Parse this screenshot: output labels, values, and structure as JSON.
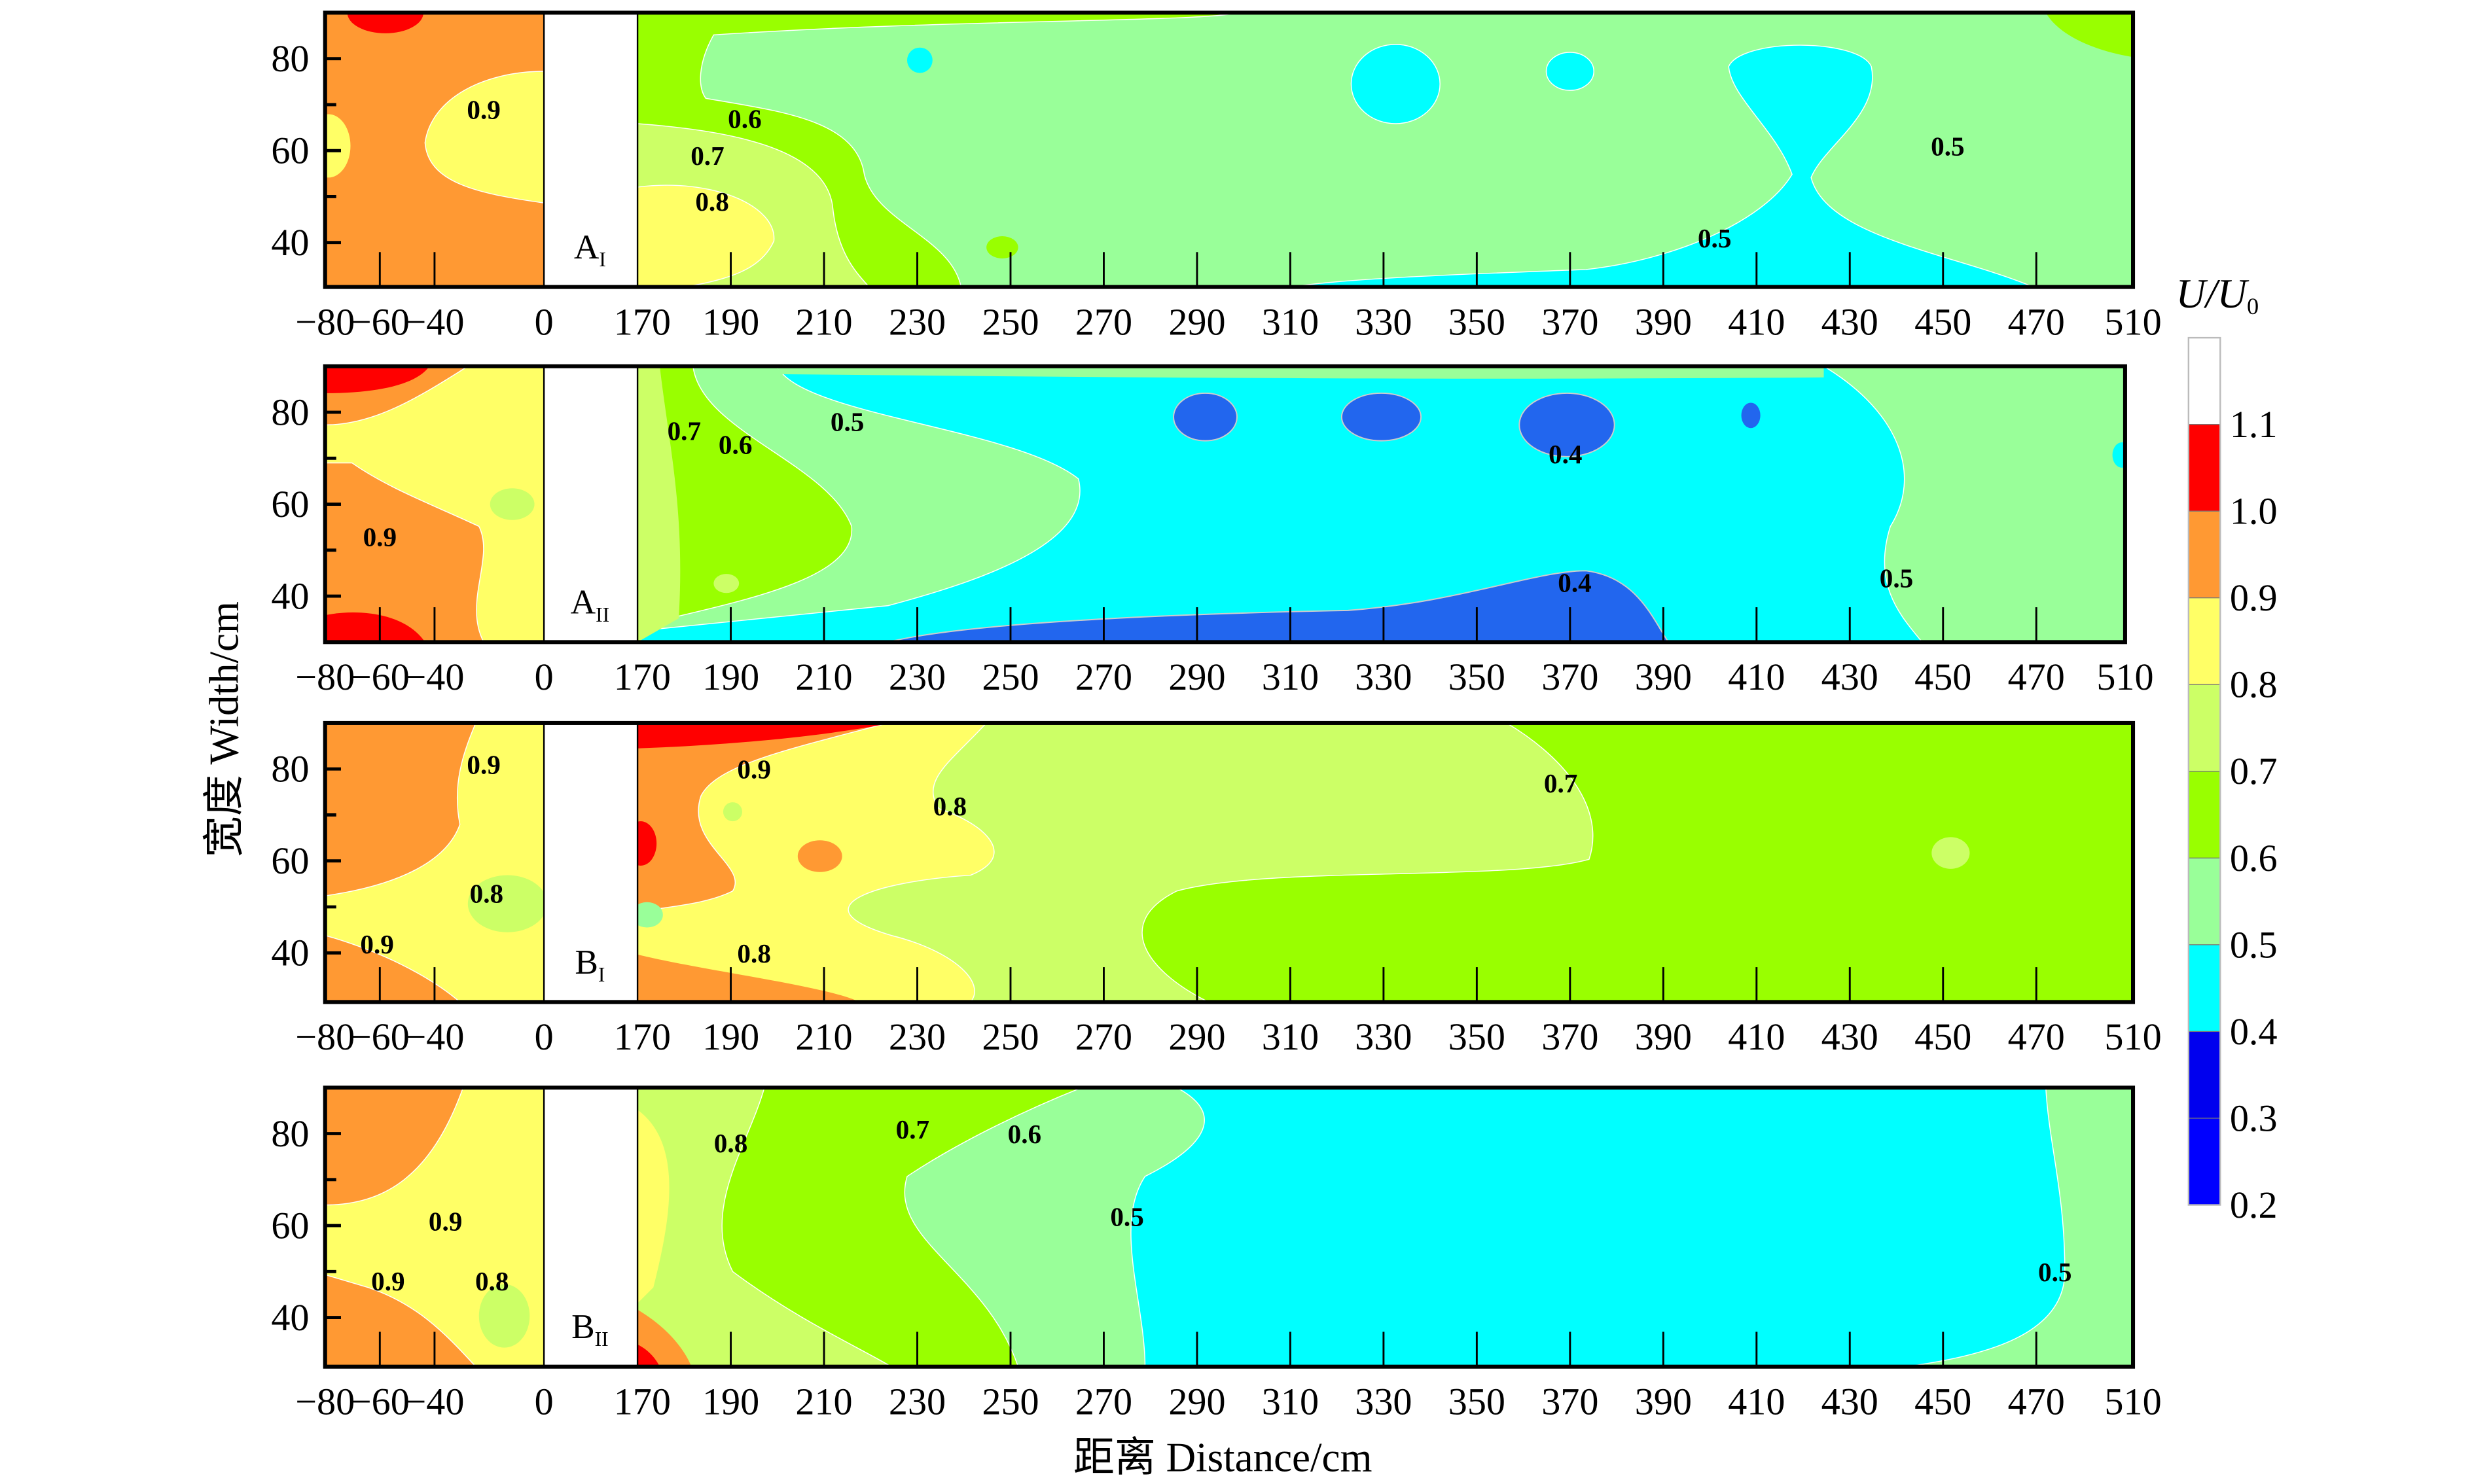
{
  "chart_data": {
    "type": "heatmap",
    "subtype": "filled-contour",
    "xlabel": "距离 Distance/cm",
    "ylabel": "宽度 Width/cm",
    "x_tick_labels": [
      "−80",
      "−60",
      "−40",
      "0",
      "170",
      "190",
      "210",
      "230",
      "250",
      "270",
      "290",
      "310",
      "330",
      "350",
      "370",
      "390",
      "410",
      "430",
      "450",
      "470",
      "510"
    ],
    "x_tick_values": [
      -80,
      -60,
      -40,
      0,
      170,
      190,
      210,
      230,
      250,
      270,
      290,
      310,
      330,
      350,
      370,
      390,
      410,
      430,
      450,
      470,
      510
    ],
    "y_tick_labels": [
      "80",
      "60",
      "40"
    ],
    "y_tick_values": [
      80,
      60,
      40
    ],
    "ylim": [
      30,
      90
    ],
    "colorbar": {
      "title": "U/U",
      "title_sub": "0",
      "levels": [
        "1.1",
        "1.0",
        "0.9",
        "0.8",
        "0.7",
        "0.6",
        "0.5",
        "0.4",
        "0.3",
        "0.2"
      ],
      "colors": [
        "#ffffff",
        "#ff0000",
        "#ff9933",
        "#ffff66",
        "#ccff66",
        "#99ff00",
        "#99ff99",
        "#00ffff",
        "#0000ee",
        "#0000ff"
      ]
    },
    "panels": [
      {
        "name": "A",
        "sub": "I",
        "contour_labels": [
          {
            "text": "0.9",
            "x": -22,
            "y": 69
          },
          {
            "text": "0.6",
            "x": 193,
            "y": 67
          },
          {
            "text": "0.7",
            "x": 185,
            "y": 59
          },
          {
            "text": "0.8",
            "x": 186,
            "y": 49
          },
          {
            "text": "0.5",
            "x": 401,
            "y": 41
          },
          {
            "text": "0.5",
            "x": 451,
            "y": 61
          }
        ]
      },
      {
        "name": "A",
        "sub": "II",
        "contour_labels": [
          {
            "text": "0.9",
            "x": -60,
            "y": 53
          },
          {
            "text": "0.7",
            "x": 180,
            "y": 76
          },
          {
            "text": "0.6",
            "x": 191,
            "y": 73
          },
          {
            "text": "0.5",
            "x": 215,
            "y": 78
          },
          {
            "text": "0.4",
            "x": 369,
            "y": 71
          },
          {
            "text": "0.4",
            "x": 371,
            "y": 43
          },
          {
            "text": "0.5",
            "x": 440,
            "y": 44
          }
        ]
      },
      {
        "name": "B",
        "sub": "I",
        "contour_labels": [
          {
            "text": "0.9",
            "x": -22,
            "y": 81
          },
          {
            "text": "0.8",
            "x": -21,
            "y": 53
          },
          {
            "text": "0.9",
            "x": -61,
            "y": 42
          },
          {
            "text": "0.9",
            "x": 195,
            "y": 80
          },
          {
            "text": "0.8",
            "x": 237,
            "y": 72
          },
          {
            "text": "0.7",
            "x": 368,
            "y": 77
          },
          {
            "text": "0.8",
            "x": 195,
            "y": 40
          }
        ]
      },
      {
        "name": "B",
        "sub": "II",
        "contour_labels": [
          {
            "text": "0.9",
            "x": -36,
            "y": 61
          },
          {
            "text": "0.9",
            "x": -57,
            "y": 48
          },
          {
            "text": "0.8",
            "x": -19,
            "y": 48
          },
          {
            "text": "0.8",
            "x": 190,
            "y": 78
          },
          {
            "text": "0.7",
            "x": 229,
            "y": 81
          },
          {
            "text": "0.6",
            "x": 253,
            "y": 80
          },
          {
            "text": "0.5",
            "x": 275,
            "y": 62
          },
          {
            "text": "0.5",
            "x": 474,
            "y": 50
          }
        ]
      }
    ]
  }
}
